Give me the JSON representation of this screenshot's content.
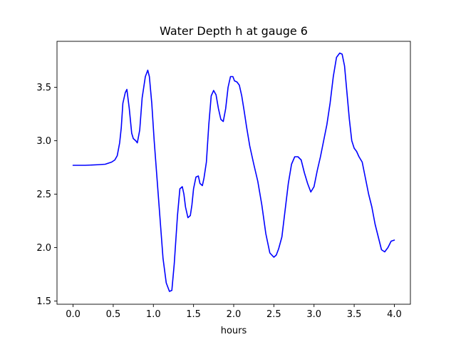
{
  "chart_data": {
    "type": "line",
    "title": "Water Depth h at gauge 6",
    "xlabel": "hours",
    "ylabel": "",
    "xlim": [
      -0.2,
      4.2
    ],
    "ylim": [
      1.47,
      3.93
    ],
    "xticks": [
      0.0,
      0.5,
      1.0,
      1.5,
      2.0,
      2.5,
      3.0,
      3.5,
      4.0
    ],
    "xtick_labels": [
      "0.0",
      "0.5",
      "1.0",
      "1.5",
      "2.0",
      "2.5",
      "3.0",
      "3.5",
      "4.0"
    ],
    "yticks": [
      1.5,
      2.0,
      2.5,
      3.0,
      3.5
    ],
    "ytick_labels": [
      "1.5",
      "2.0",
      "2.5",
      "3.0",
      "3.5"
    ],
    "grid": false,
    "series": [
      {
        "color": "#0000ff",
        "x": [
          0.0,
          0.15,
          0.3,
          0.4,
          0.48,
          0.52,
          0.55,
          0.58,
          0.6,
          0.62,
          0.65,
          0.67,
          0.7,
          0.73,
          0.75,
          0.78,
          0.8,
          0.83,
          0.86,
          0.9,
          0.93,
          0.95,
          0.98,
          1.01,
          1.04,
          1.08,
          1.12,
          1.16,
          1.2,
          1.23,
          1.26,
          1.3,
          1.33,
          1.36,
          1.38,
          1.4,
          1.43,
          1.46,
          1.48,
          1.5,
          1.53,
          1.56,
          1.58,
          1.61,
          1.63,
          1.66,
          1.69,
          1.72,
          1.75,
          1.78,
          1.81,
          1.84,
          1.87,
          1.9,
          1.93,
          1.96,
          1.99,
          2.01,
          2.04,
          2.07,
          2.1,
          2.13,
          2.16,
          2.2,
          2.25,
          2.3,
          2.35,
          2.4,
          2.45,
          2.5,
          2.53,
          2.56,
          2.6,
          2.64,
          2.68,
          2.72,
          2.76,
          2.8,
          2.84,
          2.88,
          2.92,
          2.96,
          3.0,
          3.04,
          3.08,
          3.12,
          3.16,
          3.2,
          3.24,
          3.28,
          3.32,
          3.35,
          3.38,
          3.41,
          3.44,
          3.47,
          3.5,
          3.53,
          3.56,
          3.6,
          3.64,
          3.68,
          3.72,
          3.76,
          3.8,
          3.84,
          3.88,
          3.92,
          3.96,
          4.0
        ],
        "y": [
          2.77,
          2.77,
          2.775,
          2.78,
          2.8,
          2.82,
          2.86,
          2.98,
          3.12,
          3.35,
          3.45,
          3.48,
          3.3,
          3.07,
          3.02,
          3.0,
          2.98,
          3.1,
          3.4,
          3.6,
          3.66,
          3.6,
          3.35,
          3.0,
          2.7,
          2.3,
          1.9,
          1.67,
          1.59,
          1.6,
          1.85,
          2.3,
          2.55,
          2.57,
          2.5,
          2.38,
          2.28,
          2.3,
          2.4,
          2.55,
          2.66,
          2.67,
          2.6,
          2.58,
          2.65,
          2.8,
          3.15,
          3.42,
          3.47,
          3.43,
          3.3,
          3.2,
          3.18,
          3.3,
          3.5,
          3.6,
          3.6,
          3.56,
          3.55,
          3.52,
          3.42,
          3.28,
          3.13,
          2.95,
          2.78,
          2.62,
          2.4,
          2.13,
          1.95,
          1.91,
          1.93,
          1.99,
          2.1,
          2.35,
          2.6,
          2.78,
          2.85,
          2.85,
          2.82,
          2.7,
          2.6,
          2.52,
          2.57,
          2.72,
          2.85,
          3.0,
          3.15,
          3.35,
          3.6,
          3.78,
          3.82,
          3.81,
          3.7,
          3.45,
          3.2,
          3.0,
          2.93,
          2.9,
          2.85,
          2.8,
          2.65,
          2.5,
          2.38,
          2.22,
          2.1,
          1.98,
          1.96,
          2.0,
          2.06,
          2.07
        ]
      }
    ]
  }
}
